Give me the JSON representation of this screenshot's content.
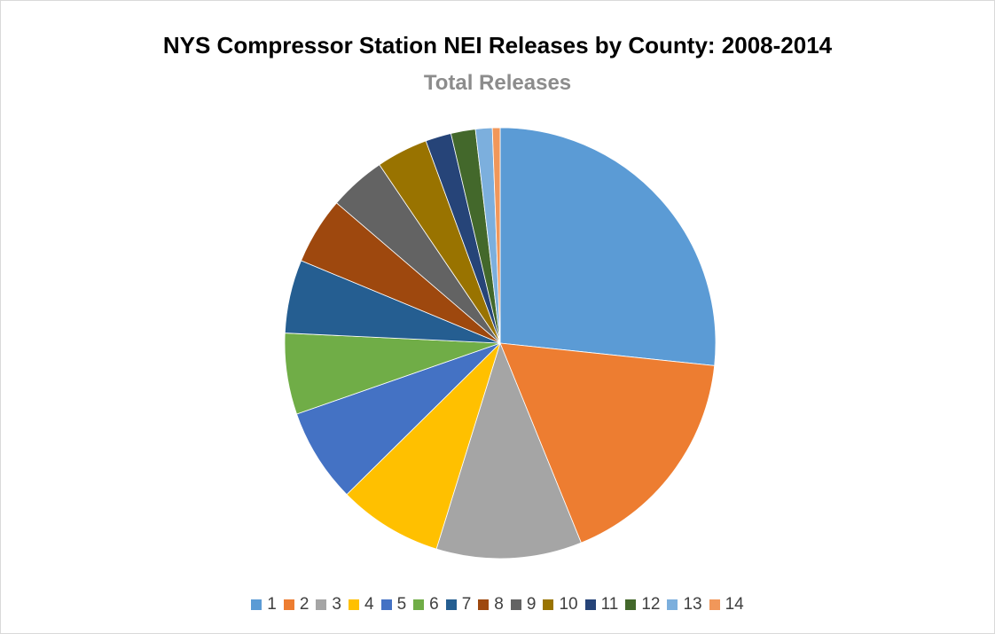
{
  "chart_data": {
    "type": "pie",
    "title": "NYS Compressor Station NEI Releases by County: 2008-2014",
    "subtitle": "Total Releases",
    "categories": [
      "1",
      "2",
      "3",
      "4",
      "5",
      "6",
      "7",
      "8",
      "9",
      "10",
      "11",
      "12",
      "13",
      "14"
    ],
    "values": [
      27.6,
      17.8,
      11.3,
      8.1,
      7.3,
      6.3,
      5.7,
      5.2,
      4.4,
      4.0,
      2.0,
      1.9,
      1.3,
      0.6
    ],
    "colors": [
      "#5b9bd5",
      "#ed7d31",
      "#a5a5a5",
      "#ffc000",
      "#4472c4",
      "#70ad47",
      "#255e91",
      "#9e480e",
      "#636363",
      "#997300",
      "#264478",
      "#43682b",
      "#7cafdd",
      "#f1975a"
    ],
    "start_angle_deg": 0,
    "direction": "clockwise",
    "legend": {
      "position": "bottom"
    }
  }
}
